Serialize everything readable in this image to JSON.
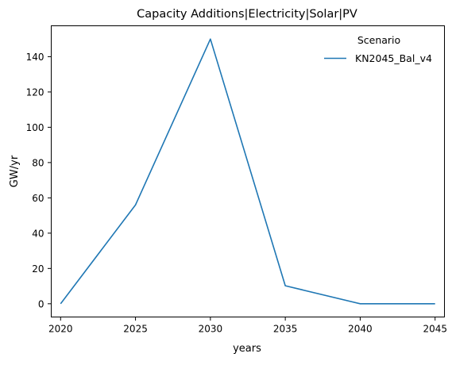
{
  "chart_data": {
    "type": "line",
    "title": "Capacity Additions|Electricity|Solar|PV",
    "xlabel": "years",
    "ylabel": "GW/yr",
    "x": [
      2020,
      2025,
      2030,
      2035,
      2040,
      2045
    ],
    "xticks": [
      "2020",
      "2025",
      "2030",
      "2035",
      "2040",
      "2045"
    ],
    "yticks": [
      "0",
      "20",
      "40",
      "60",
      "80",
      "100",
      "120",
      "140"
    ],
    "xlim": [
      2019.375,
      2045.625
    ],
    "ylim": [
      -7.5,
      157.5
    ],
    "grid": false,
    "legend": {
      "title": "Scenario",
      "placement": "top-right"
    },
    "series": [
      {
        "name": "KN2045_Bal_v4",
        "color": "#1f77b4",
        "values": [
          0,
          56,
          150,
          10.2,
          0,
          0
        ]
      }
    ]
  }
}
